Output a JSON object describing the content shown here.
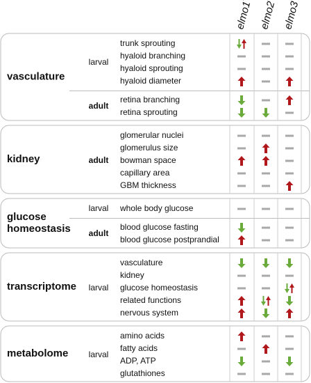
{
  "columns": [
    {
      "gene": "elmo1",
      "sup": "-/-"
    },
    {
      "gene": "elmo2",
      "sup": "-/-"
    },
    {
      "gene": "elmo3",
      "sup": "-/-"
    }
  ],
  "sections": [
    {
      "label_lines": [
        "vasculature"
      ],
      "groups": [
        {
          "stage": "larval",
          "bold": false,
          "rows": [
            {
              "label": "trunk sprouting",
              "effects": [
                "down-up",
                "none",
                "none"
              ]
            },
            {
              "label": "hyaloid branching",
              "effects": [
                "none",
                "none",
                "none"
              ]
            },
            {
              "label": "hyaloid sprouting",
              "effects": [
                "none",
                "none",
                "none"
              ]
            },
            {
              "label": "hyaloid diameter",
              "effects": [
                "up",
                "none",
                "up"
              ]
            }
          ]
        },
        {
          "stage": "adult",
          "bold": true,
          "rows": [
            {
              "label": "retina branching",
              "effects": [
                "down",
                "none",
                "up"
              ]
            },
            {
              "label": "retina sprouting",
              "effects": [
                "down",
                "down",
                "none"
              ]
            }
          ]
        }
      ]
    },
    {
      "label_lines": [
        "kidney"
      ],
      "groups": [
        {
          "stage": "adult",
          "bold": true,
          "rows": [
            {
              "label": "glomerular nuclei",
              "effects": [
                "none",
                "none",
                "none"
              ]
            },
            {
              "label": "glomerulus size",
              "effects": [
                "none",
                "up",
                "none"
              ]
            },
            {
              "label": "bowman space",
              "effects": [
                "up",
                "up",
                "none"
              ]
            },
            {
              "label": "capillary area",
              "effects": [
                "none",
                "none",
                "none"
              ]
            },
            {
              "label": "GBM thickness",
              "effects": [
                "none",
                "none",
                "up"
              ]
            }
          ]
        }
      ]
    },
    {
      "label_lines": [
        "glucose",
        "homeostasis"
      ],
      "groups": [
        {
          "stage": "larval",
          "bold": false,
          "rows": [
            {
              "label": "whole body glucose",
              "effects": [
                "none",
                "none",
                "none"
              ]
            }
          ]
        },
        {
          "stage": "adult",
          "bold": true,
          "rows": [
            {
              "label": "blood glucose fasting",
              "effects": [
                "down",
                "none",
                "none"
              ]
            },
            {
              "label": "blood glucose postprandial",
              "effects": [
                "up",
                "none",
                "none"
              ]
            }
          ]
        }
      ]
    },
    {
      "label_lines": [
        "transcriptome"
      ],
      "groups": [
        {
          "stage": "larval",
          "bold": false,
          "rows": [
            {
              "label": "vasculature",
              "effects": [
                "down",
                "down",
                "down"
              ]
            },
            {
              "label": "kidney",
              "effects": [
                "none",
                "none",
                "none"
              ]
            },
            {
              "label": "glucose homeostasis",
              "effects": [
                "none",
                "none",
                "down-up"
              ]
            },
            {
              "label": "related functions",
              "effects": [
                "up",
                "down-up",
                "down"
              ]
            },
            {
              "label": "nervous system",
              "effects": [
                "up",
                "down",
                "up"
              ]
            }
          ]
        }
      ]
    },
    {
      "label_lines": [
        "metabolome"
      ],
      "groups": [
        {
          "stage": "larval",
          "bold": false,
          "rows": [
            {
              "label": "amino acids",
              "effects": [
                "up",
                "none",
                "none"
              ]
            },
            {
              "label": "fatty acids",
              "effects": [
                "none",
                "up",
                "none"
              ]
            },
            {
              "label": "ADP, ATP",
              "effects": [
                "down",
                "none",
                "down"
              ]
            },
            {
              "label": "glutathiones",
              "effects": [
                "none",
                "none",
                "none"
              ]
            }
          ]
        }
      ]
    }
  ]
}
